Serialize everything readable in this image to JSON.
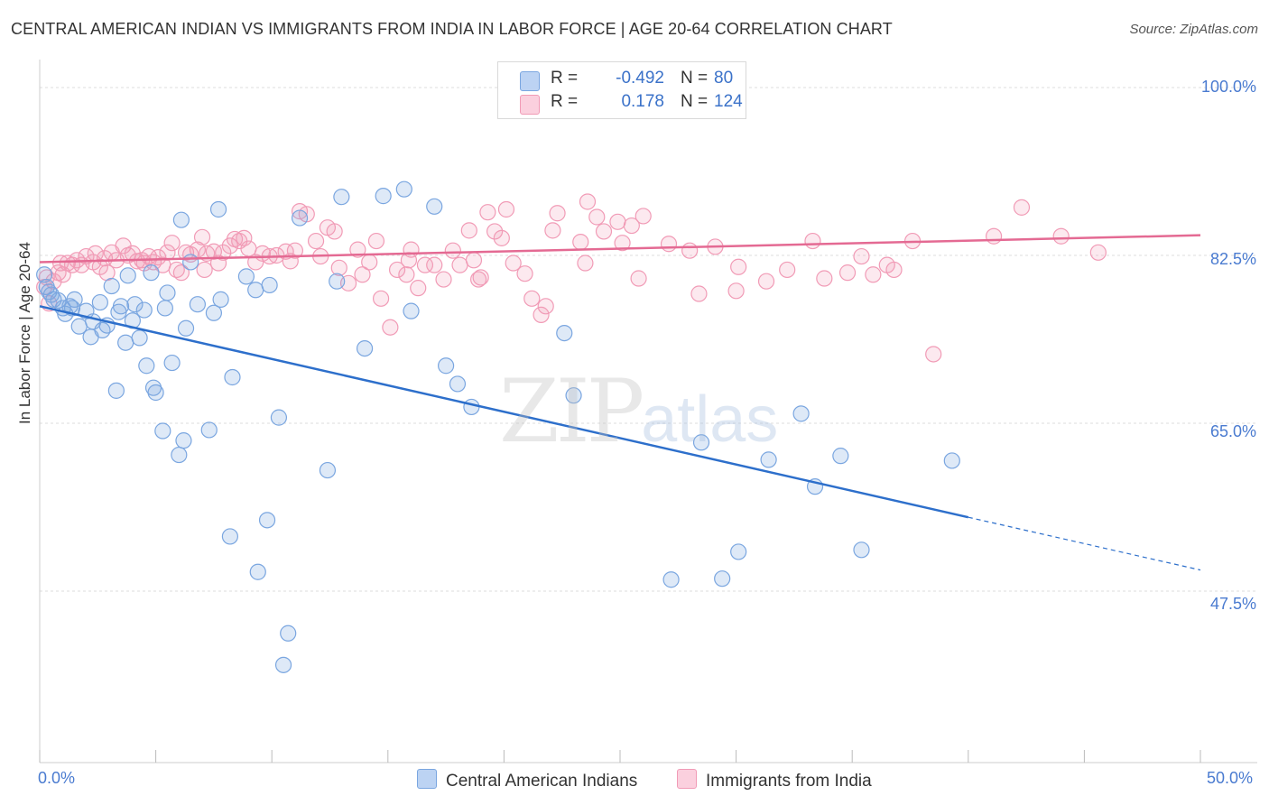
{
  "title": "CENTRAL AMERICAN INDIAN VS IMMIGRANTS FROM INDIA IN LABOR FORCE | AGE 20-64 CORRELATION CHART",
  "source": "Source: ZipAtlas.com",
  "watermark": {
    "zip": "ZIP",
    "atlas": "atlas"
  },
  "legend": {
    "series1": {
      "r_label": "R =",
      "r_value": "-0.492",
      "n_label": "N =",
      "n_value": "80"
    },
    "series2": {
      "r_label": "R =",
      "r_value": "0.178",
      "n_label": "N =",
      "n_value": "124"
    }
  },
  "chart_data": {
    "type": "scatter",
    "title": "CENTRAL AMERICAN INDIAN VS IMMIGRANTS FROM INDIA IN LABOR FORCE | AGE 20-64 CORRELATION CHART",
    "xlabel": "",
    "ylabel": "In Labor Force | Age 20-64",
    "xlim": [
      0,
      50
    ],
    "ylim": [
      35,
      102
    ],
    "x_tick_labels": [
      "0.0%",
      "50.0%"
    ],
    "y_tick_labels": [
      "100.0%",
      "82.5%",
      "65.0%",
      "47.5%"
    ],
    "y_ticks": [
      100,
      82.5,
      65,
      47.5
    ],
    "grid": true,
    "legend_position": "top-center",
    "colors": {
      "series1": "#7aa6e0",
      "series2": "#f19bb6",
      "line1": "#2d6fcb",
      "line2": "#e46a93"
    },
    "series": [
      {
        "name": "Central American Indians",
        "trend": {
          "x0": 0,
          "y0": 77.2,
          "x1": 40,
          "y1": 55.2,
          "dash_to_x": 50,
          "dash_to_y": 49.7
        },
        "points": [
          [
            0.2,
            80.5
          ],
          [
            0.3,
            79.2
          ],
          [
            0.5,
            78.4
          ],
          [
            0.6,
            77.9
          ],
          [
            0.8,
            77.8
          ],
          [
            1.0,
            77.0
          ],
          [
            1.1,
            76.4
          ],
          [
            1.3,
            77.2
          ],
          [
            1.5,
            77.9
          ],
          [
            1.7,
            75.1
          ],
          [
            2.0,
            76.7
          ],
          [
            2.2,
            74.0
          ],
          [
            2.3,
            75.6
          ],
          [
            2.6,
            77.6
          ],
          [
            2.7,
            74.7
          ],
          [
            2.9,
            75.2
          ],
          [
            3.1,
            79.3
          ],
          [
            3.3,
            68.4
          ],
          [
            3.4,
            76.6
          ],
          [
            3.5,
            77.2
          ],
          [
            3.7,
            73.4
          ],
          [
            3.8,
            80.4
          ],
          [
            4.0,
            75.7
          ],
          [
            4.1,
            77.4
          ],
          [
            4.3,
            73.9
          ],
          [
            4.5,
            76.8
          ],
          [
            4.6,
            71.0
          ],
          [
            4.8,
            80.7
          ],
          [
            4.9,
            68.7
          ],
          [
            5.0,
            68.2
          ],
          [
            5.3,
            64.2
          ],
          [
            5.4,
            77.0
          ],
          [
            5.5,
            78.6
          ],
          [
            5.7,
            71.3
          ],
          [
            6.0,
            61.7
          ],
          [
            6.1,
            86.2
          ],
          [
            6.2,
            63.2
          ],
          [
            6.3,
            74.9
          ],
          [
            6.5,
            81.8
          ],
          [
            7.3,
            64.3
          ],
          [
            7.5,
            76.5
          ],
          [
            7.7,
            87.3
          ],
          [
            7.8,
            77.9
          ],
          [
            8.3,
            69.8
          ],
          [
            8.2,
            53.2
          ],
          [
            8.9,
            80.3
          ],
          [
            9.3,
            78.9
          ],
          [
            9.4,
            49.5
          ],
          [
            9.8,
            54.9
          ],
          [
            9.9,
            79.4
          ],
          [
            10.3,
            65.6
          ],
          [
            10.7,
            43.1
          ],
          [
            10.5,
            39.8
          ],
          [
            11.2,
            86.4
          ],
          [
            12.4,
            60.1
          ],
          [
            12.8,
            79.8
          ],
          [
            13.0,
            88.6
          ],
          [
            14.0,
            72.8
          ],
          [
            14.8,
            88.7
          ],
          [
            15.7,
            89.4
          ],
          [
            16.0,
            76.7
          ],
          [
            17.0,
            87.6
          ],
          [
            17.5,
            71.0
          ],
          [
            18.0,
            69.1
          ],
          [
            18.6,
            66.7
          ],
          [
            22.6,
            74.4
          ],
          [
            23.0,
            67.9
          ],
          [
            27.2,
            48.7
          ],
          [
            28.5,
            63.0
          ],
          [
            29.4,
            48.8
          ],
          [
            30.1,
            51.6
          ],
          [
            31.4,
            61.2
          ],
          [
            32.8,
            66.0
          ],
          [
            33.4,
            58.4
          ],
          [
            34.5,
            61.6
          ],
          [
            35.4,
            51.8
          ],
          [
            39.3,
            61.1
          ],
          [
            0.4,
            78.7
          ],
          [
            1.4,
            77.0
          ],
          [
            6.8,
            77.4
          ]
        ]
      },
      {
        "name": "Immigrants from India",
        "trend": {
          "x0": 0,
          "y0": 81.8,
          "x1": 50,
          "y1": 84.6
        },
        "points": [
          [
            0.2,
            79.2
          ],
          [
            0.3,
            80.2
          ],
          [
            0.4,
            77.5
          ],
          [
            0.6,
            79.8
          ],
          [
            0.8,
            80.7
          ],
          [
            1.0,
            80.5
          ],
          [
            1.2,
            81.7
          ],
          [
            1.4,
            81.5
          ],
          [
            1.6,
            82.0
          ],
          [
            1.8,
            81.5
          ],
          [
            2.0,
            82.4
          ],
          [
            2.3,
            81.8
          ],
          [
            2.4,
            82.7
          ],
          [
            2.6,
            81.3
          ],
          [
            2.8,
            82.2
          ],
          [
            3.1,
            82.8
          ],
          [
            3.3,
            82.0
          ],
          [
            3.6,
            83.5
          ],
          [
            3.8,
            82.5
          ],
          [
            4.0,
            82.7
          ],
          [
            4.2,
            81.9
          ],
          [
            4.4,
            82.0
          ],
          [
            4.7,
            82.4
          ],
          [
            4.9,
            81.8
          ],
          [
            5.1,
            82.3
          ],
          [
            5.3,
            81.5
          ],
          [
            5.5,
            82.8
          ],
          [
            5.7,
            83.8
          ],
          [
            5.9,
            81.0
          ],
          [
            6.1,
            80.7
          ],
          [
            6.3,
            82.8
          ],
          [
            6.5,
            82.6
          ],
          [
            6.8,
            83.1
          ],
          [
            7.0,
            84.4
          ],
          [
            7.2,
            82.7
          ],
          [
            7.5,
            82.9
          ],
          [
            7.7,
            81.7
          ],
          [
            7.9,
            82.8
          ],
          [
            8.2,
            83.5
          ],
          [
            8.4,
            84.2
          ],
          [
            8.6,
            84.0
          ],
          [
            8.8,
            84.3
          ],
          [
            9.0,
            83.2
          ],
          [
            9.3,
            81.8
          ],
          [
            9.6,
            82.7
          ],
          [
            9.9,
            82.4
          ],
          [
            10.2,
            82.5
          ],
          [
            10.6,
            82.9
          ],
          [
            11.0,
            83.0
          ],
          [
            11.2,
            87.1
          ],
          [
            11.5,
            86.8
          ],
          [
            11.9,
            84.0
          ],
          [
            12.1,
            82.4
          ],
          [
            12.4,
            85.4
          ],
          [
            12.7,
            85.0
          ],
          [
            12.9,
            81.2
          ],
          [
            13.3,
            79.6
          ],
          [
            13.7,
            83.1
          ],
          [
            13.9,
            80.5
          ],
          [
            14.2,
            81.8
          ],
          [
            14.5,
            84.0
          ],
          [
            14.7,
            78.0
          ],
          [
            15.1,
            75.0
          ],
          [
            15.4,
            81.0
          ],
          [
            15.8,
            80.5
          ],
          [
            16.0,
            83.1
          ],
          [
            16.3,
            79.1
          ],
          [
            16.6,
            81.5
          ],
          [
            17.0,
            81.5
          ],
          [
            17.4,
            80.0
          ],
          [
            17.8,
            83.0
          ],
          [
            18.1,
            81.5
          ],
          [
            18.5,
            85.1
          ],
          [
            18.7,
            82.0
          ],
          [
            19.0,
            80.2
          ],
          [
            19.3,
            87.0
          ],
          [
            19.6,
            85.0
          ],
          [
            19.9,
            84.3
          ],
          [
            20.1,
            87.3
          ],
          [
            20.4,
            81.7
          ],
          [
            20.9,
            80.6
          ],
          [
            21.2,
            78.0
          ],
          [
            21.6,
            76.3
          ],
          [
            22.1,
            85.1
          ],
          [
            22.3,
            86.9
          ],
          [
            23.3,
            83.9
          ],
          [
            23.6,
            88.1
          ],
          [
            24.0,
            86.5
          ],
          [
            24.3,
            85.0
          ],
          [
            24.9,
            86.0
          ],
          [
            25.5,
            85.6
          ],
          [
            25.1,
            83.8
          ],
          [
            26.0,
            86.6
          ],
          [
            27.1,
            83.7
          ],
          [
            28.0,
            83.0
          ],
          [
            28.4,
            78.5
          ],
          [
            29.1,
            83.4
          ],
          [
            30.1,
            81.3
          ],
          [
            31.3,
            79.8
          ],
          [
            32.2,
            81.0
          ],
          [
            33.3,
            84.0
          ],
          [
            33.8,
            80.1
          ],
          [
            34.8,
            80.7
          ],
          [
            35.4,
            82.4
          ],
          [
            36.5,
            81.5
          ],
          [
            37.6,
            84.0
          ],
          [
            38.5,
            72.2
          ],
          [
            41.1,
            84.5
          ],
          [
            42.3,
            87.5
          ],
          [
            45.6,
            82.8
          ],
          [
            0.9,
            81.7
          ],
          [
            2.9,
            80.7
          ],
          [
            4.5,
            81.7
          ],
          [
            7.1,
            81.0
          ],
          [
            10.8,
            81.9
          ],
          [
            15.9,
            82.0
          ],
          [
            18.9,
            80.0
          ],
          [
            21.8,
            77.2
          ],
          [
            23.5,
            81.7
          ],
          [
            25.8,
            80.1
          ],
          [
            30.0,
            78.8
          ],
          [
            35.9,
            80.5
          ],
          [
            36.8,
            81.0
          ],
          [
            44.0,
            84.5
          ]
        ]
      }
    ]
  },
  "bottom_legend": {
    "series1": "Central American Indians",
    "series2": "Immigrants from India"
  }
}
